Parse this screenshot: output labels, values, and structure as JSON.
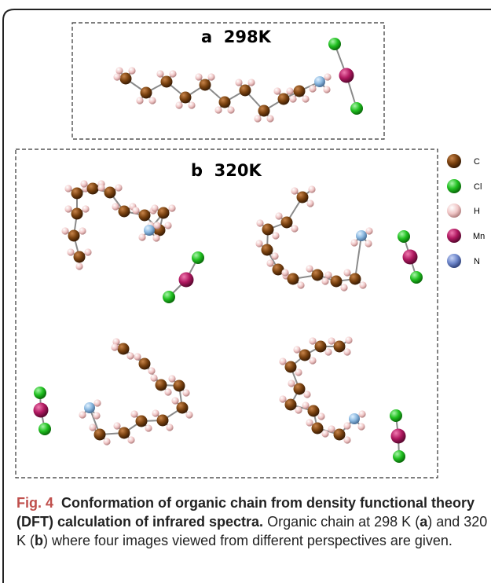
{
  "panels": {
    "a": {
      "label": "a  298K"
    },
    "b": {
      "label": "b  320K"
    }
  },
  "legend": [
    {
      "symbol": "C",
      "color": "#6b3a10",
      "icon": "carbon-atom-icon"
    },
    {
      "symbol": "Cl",
      "color": "#22c322",
      "icon": "chlorine-atom-icon"
    },
    {
      "symbol": "H",
      "color": "#e6b4b4",
      "icon": "hydrogen-atom-icon"
    },
    {
      "symbol": "Mn",
      "color": "#b01860",
      "icon": "manganese-atom-icon"
    },
    {
      "symbol": "N",
      "color": "#6f88cc",
      "icon": "nitrogen-atom-icon"
    }
  ],
  "caption": {
    "fig_label": "Fig. 4",
    "title": "Conformation of organic chain from density functional theory (DFT) calculation of infrared spectra.",
    "t1": "Organic chain at 298 K (",
    "a": "a",
    "t2": ") and 320 K (",
    "b": "b",
    "t3": ") where four images viewed from different perspectives are given."
  }
}
